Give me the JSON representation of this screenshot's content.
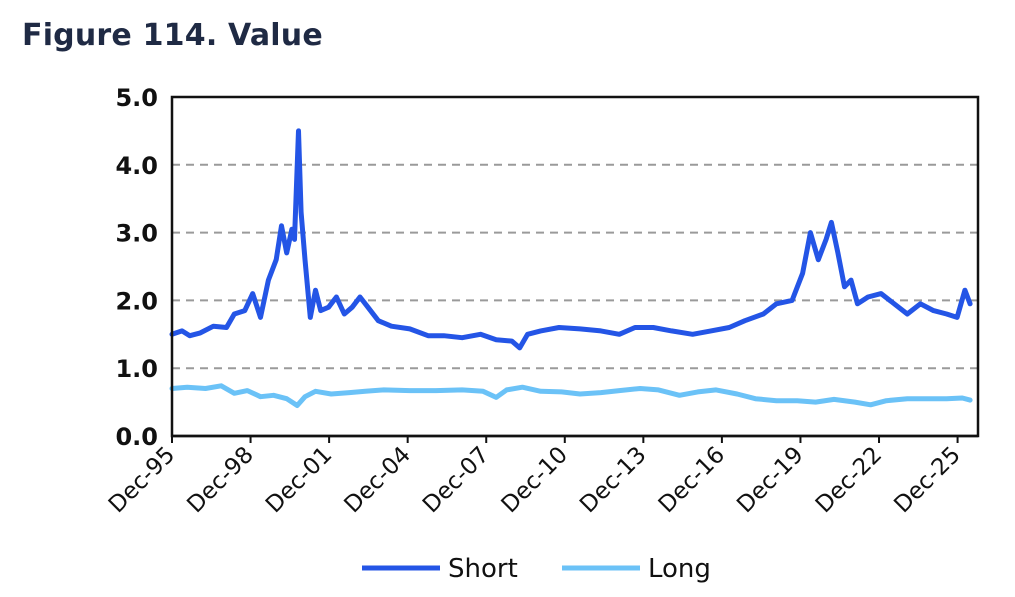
{
  "title": "Figure 114. Value",
  "chart_data": {
    "type": "line",
    "title": "Figure 114. Value",
    "xlabel": "",
    "ylabel": "",
    "ylim": [
      0,
      5
    ],
    "yticks": [
      "0.0",
      "1.0",
      "2.0",
      "3.0",
      "4.0",
      "5.0"
    ],
    "xticks": [
      "Dec-95",
      "Dec-98",
      "Dec-01",
      "Dec-04",
      "Dec-07",
      "Dec-10",
      "Dec-13",
      "Dec-16",
      "Dec-19",
      "Dec-22",
      "Dec-25"
    ],
    "x_range": [
      1995.92,
      2026.7
    ],
    "grid": "horizontal dashed",
    "legend_position": "bottom",
    "series": [
      {
        "name": "Short",
        "color": "#2455e6",
        "points": [
          [
            1995.92,
            1.5
          ],
          [
            1996.3,
            1.55
          ],
          [
            1996.6,
            1.48
          ],
          [
            1997.0,
            1.52
          ],
          [
            1997.5,
            1.62
          ],
          [
            1998.0,
            1.6
          ],
          [
            1998.3,
            1.8
          ],
          [
            1998.7,
            1.85
          ],
          [
            1999.0,
            2.1
          ],
          [
            1999.3,
            1.75
          ],
          [
            1999.6,
            2.3
          ],
          [
            1999.9,
            2.6
          ],
          [
            2000.1,
            3.1
          ],
          [
            2000.3,
            2.7
          ],
          [
            2000.5,
            3.05
          ],
          [
            2000.6,
            2.9
          ],
          [
            2000.75,
            4.5
          ],
          [
            2000.85,
            3.3
          ],
          [
            2001.0,
            2.6
          ],
          [
            2001.2,
            1.75
          ],
          [
            2001.4,
            2.15
          ],
          [
            2001.6,
            1.85
          ],
          [
            2001.9,
            1.9
          ],
          [
            2002.2,
            2.05
          ],
          [
            2002.5,
            1.8
          ],
          [
            2002.8,
            1.9
          ],
          [
            2003.1,
            2.05
          ],
          [
            2003.4,
            1.9
          ],
          [
            2003.8,
            1.7
          ],
          [
            2004.3,
            1.62
          ],
          [
            2005.0,
            1.58
          ],
          [
            2005.7,
            1.48
          ],
          [
            2006.3,
            1.48
          ],
          [
            2007.0,
            1.45
          ],
          [
            2007.7,
            1.5
          ],
          [
            2008.3,
            1.42
          ],
          [
            2008.9,
            1.4
          ],
          [
            2009.2,
            1.3
          ],
          [
            2009.5,
            1.5
          ],
          [
            2010.0,
            1.55
          ],
          [
            2010.7,
            1.6
          ],
          [
            2011.5,
            1.58
          ],
          [
            2012.3,
            1.55
          ],
          [
            2013.0,
            1.5
          ],
          [
            2013.6,
            1.6
          ],
          [
            2014.3,
            1.6
          ],
          [
            2015.0,
            1.55
          ],
          [
            2015.8,
            1.5
          ],
          [
            2016.5,
            1.55
          ],
          [
            2017.2,
            1.6
          ],
          [
            2017.8,
            1.7
          ],
          [
            2018.5,
            1.8
          ],
          [
            2019.0,
            1.95
          ],
          [
            2019.6,
            2.0
          ],
          [
            2020.0,
            2.4
          ],
          [
            2020.3,
            3.0
          ],
          [
            2020.6,
            2.6
          ],
          [
            2020.9,
            2.9
          ],
          [
            2021.1,
            3.15
          ],
          [
            2021.35,
            2.7
          ],
          [
            2021.6,
            2.2
          ],
          [
            2021.85,
            2.3
          ],
          [
            2022.1,
            1.95
          ],
          [
            2022.5,
            2.05
          ],
          [
            2023.0,
            2.1
          ],
          [
            2023.5,
            1.95
          ],
          [
            2024.0,
            1.8
          ],
          [
            2024.5,
            1.95
          ],
          [
            2025.0,
            1.85
          ],
          [
            2025.5,
            1.8
          ],
          [
            2025.9,
            1.75
          ],
          [
            2026.2,
            2.15
          ],
          [
            2026.4,
            1.95
          ]
        ]
      },
      {
        "name": "Long",
        "color": "#6bc2f7",
        "points": [
          [
            1995.92,
            0.7
          ],
          [
            1996.5,
            0.72
          ],
          [
            1997.2,
            0.7
          ],
          [
            1997.8,
            0.74
          ],
          [
            1998.3,
            0.63
          ],
          [
            1998.8,
            0.67
          ],
          [
            1999.3,
            0.58
          ],
          [
            1999.8,
            0.6
          ],
          [
            2000.3,
            0.55
          ],
          [
            2000.7,
            0.45
          ],
          [
            2001.0,
            0.58
          ],
          [
            2001.4,
            0.66
          ],
          [
            2002.0,
            0.62
          ],
          [
            2002.7,
            0.64
          ],
          [
            2003.3,
            0.66
          ],
          [
            2004.0,
            0.68
          ],
          [
            2005.0,
            0.67
          ],
          [
            2006.0,
            0.67
          ],
          [
            2007.0,
            0.68
          ],
          [
            2007.8,
            0.66
          ],
          [
            2008.3,
            0.57
          ],
          [
            2008.7,
            0.68
          ],
          [
            2009.3,
            0.72
          ],
          [
            2010.0,
            0.66
          ],
          [
            2010.8,
            0.65
          ],
          [
            2011.5,
            0.62
          ],
          [
            2012.3,
            0.64
          ],
          [
            2013.0,
            0.67
          ],
          [
            2013.8,
            0.7
          ],
          [
            2014.5,
            0.68
          ],
          [
            2015.3,
            0.6
          ],
          [
            2016.0,
            0.65
          ],
          [
            2016.7,
            0.68
          ],
          [
            2017.5,
            0.62
          ],
          [
            2018.2,
            0.55
          ],
          [
            2019.0,
            0.52
          ],
          [
            2019.8,
            0.52
          ],
          [
            2020.5,
            0.5
          ],
          [
            2021.2,
            0.54
          ],
          [
            2022.0,
            0.5
          ],
          [
            2022.6,
            0.46
          ],
          [
            2023.2,
            0.52
          ],
          [
            2024.0,
            0.55
          ],
          [
            2024.8,
            0.55
          ],
          [
            2025.5,
            0.55
          ],
          [
            2026.1,
            0.56
          ],
          [
            2026.4,
            0.53
          ]
        ]
      }
    ]
  }
}
